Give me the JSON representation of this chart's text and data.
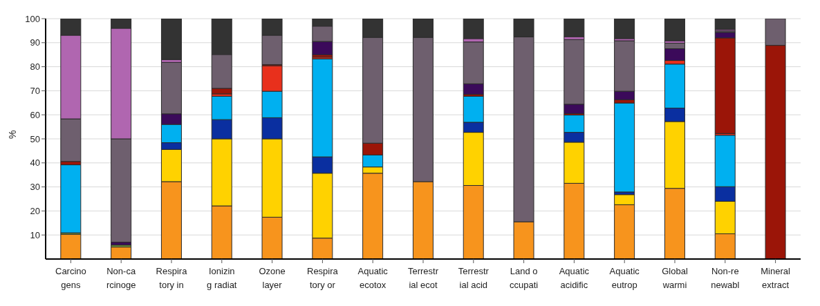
{
  "chart_data": {
    "type": "bar",
    "stacked": true,
    "ylabel": "%",
    "ylim": [
      0,
      100
    ],
    "yticks": [
      10,
      20,
      30,
      40,
      50,
      60,
      70,
      80,
      90,
      100
    ],
    "grid": "y",
    "legend": false,
    "categories": [
      "Carcino\ngens",
      "Non-ca\nrcinoge",
      "Respira\ntory in",
      "Ionizin\ng radiat",
      "Ozone\nlayer",
      "Respira\ntory or",
      "Aquatic\necotox",
      "Terrestr\nial ecot",
      "Terrestr\nial acid",
      "Land o\nccupati",
      "Aquatic\nacidific",
      "Aquatic\neutrop",
      "Global\nwarmi",
      "Non-re\nnewabl",
      "Mineral\nextract"
    ],
    "series": [
      {
        "color": "#f7941d",
        "values": [
          10.3,
          5.0,
          32.2,
          22.1,
          17.4,
          8.7,
          35.7,
          32.2,
          30.6,
          15.5,
          31.5,
          22.6,
          29.4,
          10.5,
          null
        ]
      },
      {
        "color": "#7fa83a",
        "values": [
          0.6,
          0.8,
          null,
          null,
          null,
          null,
          null,
          null,
          null,
          null,
          null,
          null,
          null,
          null,
          null
        ]
      },
      {
        "color": "#ffd200",
        "values": [
          null,
          null,
          13.4,
          27.9,
          32.6,
          27.0,
          2.6,
          null,
          22.1,
          null,
          17.1,
          4.2,
          27.8,
          13.5,
          null
        ]
      },
      {
        "color": "#0a2fa0",
        "values": [
          null,
          null,
          2.8,
          8.0,
          8.8,
          6.8,
          null,
          null,
          4.2,
          null,
          4.1,
          1.1,
          5.6,
          6.1,
          null
        ]
      },
      {
        "color": "#00b0f0",
        "values": [
          28.3,
          null,
          7.6,
          9.7,
          11.0,
          40.8,
          5.0,
          null,
          10.8,
          null,
          7.2,
          37.0,
          18.3,
          21.4,
          null
        ]
      },
      {
        "color": "#e8301c",
        "values": [
          null,
          null,
          null,
          1.0,
          10.6,
          0.7,
          null,
          null,
          null,
          null,
          null,
          null,
          1.5,
          0.7,
          null
        ]
      },
      {
        "color": "#9b1508",
        "values": [
          1.4,
          null,
          null,
          2.3,
          0.5,
          1.0,
          4.9,
          null,
          0.8,
          null,
          0.6,
          1.4,
          null,
          39.8,
          88.9
        ]
      },
      {
        "color": "#3b0a5a",
        "values": [
          null,
          1.2,
          4.4,
          null,
          null,
          5.5,
          null,
          null,
          4.4,
          null,
          3.9,
          3.5,
          4.9,
          2.3,
          null
        ]
      },
      {
        "color": "#6e5f6e",
        "values": [
          17.7,
          43.0,
          21.4,
          14.1,
          12.2,
          6.4,
          44.0,
          60.0,
          17.4,
          76.9,
          26.9,
          21.0,
          2.3,
          0.6,
          11.1
        ]
      },
      {
        "color": "#b066b0",
        "values": [
          34.8,
          46.0,
          1.2,
          null,
          null,
          null,
          null,
          null,
          1.4,
          null,
          1.2,
          0.9,
          1.0,
          0.6,
          null
        ]
      },
      {
        "color": "#333333",
        "values": [
          6.9,
          4.0,
          17.0,
          14.9,
          6.9,
          3.1,
          7.8,
          7.8,
          8.3,
          7.6,
          7.5,
          8.3,
          9.2,
          4.5,
          null
        ]
      }
    ]
  }
}
